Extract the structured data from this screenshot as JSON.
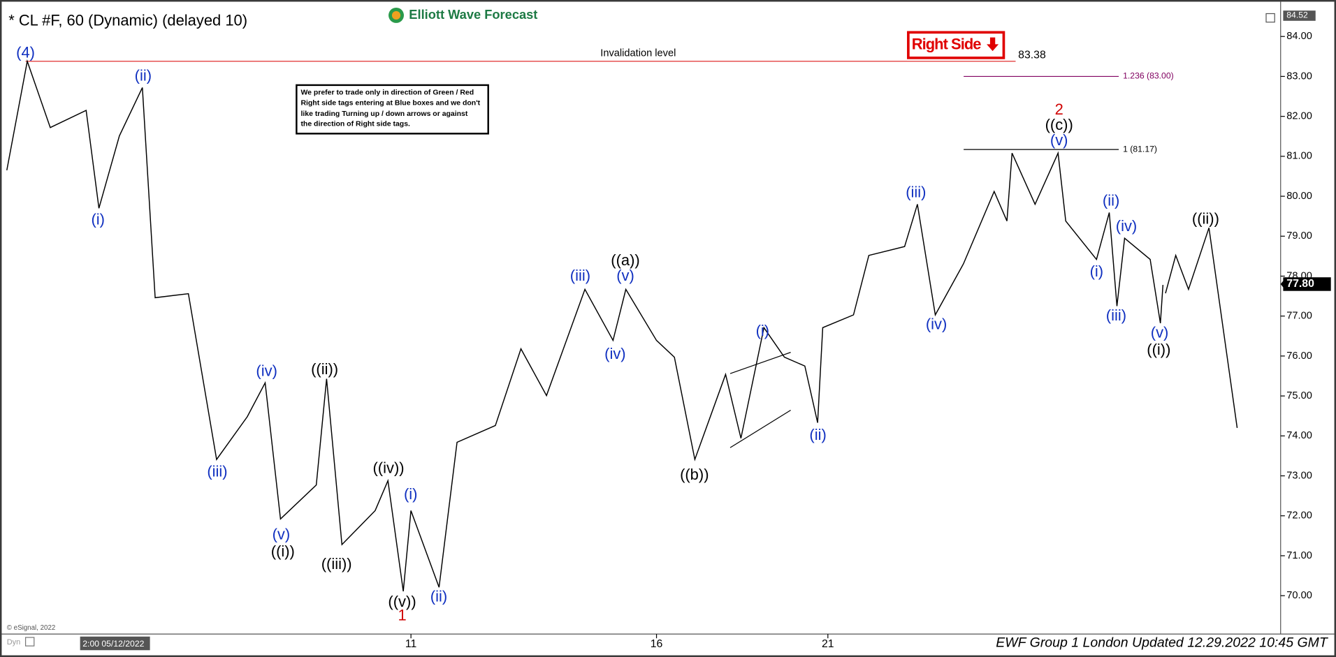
{
  "chart_data": {
    "type": "line",
    "title": "* CL #F, 60 (Dynamic) (delayed 10)",
    "color": "#000000",
    "x": [
      1,
      9,
      18,
      32,
      37,
      45,
      54,
      59,
      72,
      83,
      95,
      102,
      108,
      122,
      126,
      132,
      145,
      150,
      156,
      159,
      170,
      177,
      192,
      202,
      212,
      227,
      238,
      243,
      255,
      262,
      270,
      282,
      288,
      297,
      305,
      313,
      318,
      320,
      332,
      338,
      352,
      357,
      364,
      375,
      387,
      392,
      394,
      403,
      412,
      415,
      427,
      432,
      435,
      438,
      448,
      452,
      453
    ],
    "values": [
      80.65,
      83.38,
      81.72,
      82.15,
      79.7,
      81.51,
      82.72,
      77.46,
      77.56,
      73.41,
      74.48,
      75.33,
      71.92,
      72.77,
      75.43,
      71.28,
      72.13,
      72.88,
      70.11,
      72.13,
      70.21,
      73.84,
      74.26,
      76.18,
      75.01,
      77.67,
      76.39,
      77.67,
      76.39,
      75.97,
      73.41,
      75.54,
      73.94,
      76.71,
      75.97,
      75.75,
      74.33,
      76.71,
      77.03,
      78.52,
      78.74,
      79.8,
      77.03,
      78.31,
      80.12,
      79.38,
      81.08,
      79.8,
      81.08,
      79.38,
      78.42,
      79.59,
      77.25,
      78.95,
      78.42,
      76.82,
      77.78
    ],
    "projection": {
      "x": [
        454,
        458,
        463,
        471,
        482
      ],
      "values": [
        77.57,
        78.52,
        77.67,
        79.21,
        74.2
      ]
    },
    "xlim": [
      0,
      498
    ],
    "ylim": [
      69.04,
      84.7
    ],
    "xticks": [
      {
        "value": 159,
        "label": "11"
      },
      {
        "value": 255,
        "label": "16"
      },
      {
        "value": 322,
        "label": "21"
      }
    ],
    "yticks": [
      {
        "value": 70,
        "label": "70.00"
      },
      {
        "value": 71,
        "label": "71.00"
      },
      {
        "value": 72,
        "label": "72.00"
      },
      {
        "value": 73,
        "label": "73.00"
      },
      {
        "value": 74,
        "label": "74.00"
      },
      {
        "value": 75,
        "label": "75.00"
      },
      {
        "value": 76,
        "label": "76.00"
      },
      {
        "value": 77,
        "label": "77.00"
      },
      {
        "value": 78,
        "label": "78.00"
      },
      {
        "value": 79,
        "label": "79.00"
      },
      {
        "value": 80,
        "label": "80.00"
      },
      {
        "value": 81,
        "label": "81.00"
      },
      {
        "value": 82,
        "label": "82.00"
      },
      {
        "value": 83,
        "label": "83.00"
      },
      {
        "value": 84,
        "label": "84.00"
      }
    ],
    "grid": false,
    "top_price": 84.52,
    "last_price": {
      "value": 77.8,
      "label": "77.80"
    },
    "invalidation": {
      "label": "Invalidation level",
      "value": 83.38
    },
    "levels": [
      {
        "label": "1.236 (83.00)",
        "value": 83.0
      },
      {
        "label": "1 (81.17)",
        "value": 81.17
      }
    ],
    "crosshair_label": "2:00 05/12/2022",
    "annotations": [
      "(4)",
      "(ii)",
      "(i)",
      "(iii)",
      "(iv)",
      "(v)",
      "((i))",
      "((ii))",
      "((iii))",
      "((iv))",
      "(i)",
      "((v))",
      "1",
      "(ii)",
      "(iii)",
      "((a))",
      "(v)",
      "(iv)",
      "((b))",
      "(i)",
      "(ii)",
      "(iii)",
      "(iv)",
      "2",
      "((c))",
      "(v)",
      "(ii)",
      "(iv)",
      "(i)",
      "(iii)",
      "(v)",
      "((i))",
      "((ii))"
    ]
  },
  "logo": "Elliott Wave Forecast",
  "badge": "Right Side",
  "note": [
    "We prefer to trade only in direction of Green / Red",
    "Right side tags entering at Blue boxes and we don't",
    "like trading Turning up / down arrows or against",
    "the direction of Right side tags."
  ],
  "copyright": "© eSignal, 2022",
  "mode": "Dyn",
  "footer": "EWF Group 1 London Updated 12.29.2022 10:45 GMT"
}
